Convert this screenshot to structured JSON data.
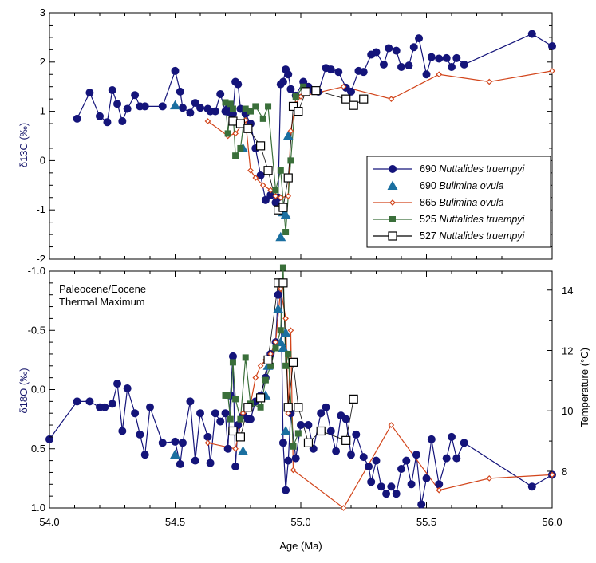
{
  "chart_data": [
    {
      "type": "scatter",
      "panel": "top",
      "ylabel": "δ13C (‰)",
      "xlim": [
        54.0,
        56.0
      ],
      "ylim": [
        -2,
        3
      ],
      "y_ticks": [
        "3",
        "2",
        "1",
        "0",
        "-1",
        "-2"
      ],
      "legend_position": "lower-right",
      "series": [
        {
          "name": "690 Nuttalides truempyi",
          "site": "690",
          "species": "Nuttalides truempyi",
          "color": "#14147a",
          "marker": "circle",
          "line": true,
          "x": [
            54.11,
            54.16,
            54.2,
            54.23,
            54.25,
            54.27,
            54.29,
            54.31,
            54.34,
            54.36,
            54.38,
            54.45,
            54.5,
            54.52,
            54.53,
            54.56,
            54.58,
            54.6,
            54.63,
            54.64,
            54.66,
            54.68,
            54.7,
            54.71,
            54.72,
            54.73,
            54.74,
            54.75,
            54.76,
            54.78,
            54.8,
            54.82,
            54.84,
            54.86,
            54.88,
            54.9,
            54.91,
            54.92,
            54.93,
            54.94,
            54.95,
            54.96,
            54.98,
            55.01,
            55.03,
            55.05,
            55.07,
            55.1,
            55.12,
            55.15,
            55.18,
            55.2,
            55.23,
            55.25,
            55.28,
            55.3,
            55.33,
            55.35,
            55.38,
            55.4,
            55.43,
            55.45,
            55.47,
            55.5,
            55.52,
            55.55,
            55.58,
            55.6,
            55.62,
            55.65,
            55.92,
            56.0
          ],
          "y": [
            0.85,
            1.38,
            0.9,
            0.78,
            1.43,
            1.15,
            0.8,
            1.05,
            1.33,
            1.1,
            1.1,
            1.1,
            1.82,
            1.4,
            1.07,
            0.97,
            1.17,
            1.07,
            1.05,
            1.0,
            1.0,
            1.35,
            1.0,
            1.05,
            0.97,
            0.95,
            1.6,
            1.55,
            1.05,
            0.95,
            0.75,
            0.25,
            -0.3,
            -0.8,
            -0.7,
            -0.85,
            -0.75,
            1.55,
            1.6,
            1.85,
            1.75,
            1.45,
            1.32,
            1.6,
            1.5,
            1.42,
            1.4,
            1.88,
            1.85,
            1.8,
            1.48,
            1.4,
            1.82,
            1.8,
            2.15,
            2.2,
            1.95,
            2.28,
            2.23,
            1.9,
            1.93,
            2.3,
            2.48,
            1.75,
            2.1,
            2.07,
            2.08,
            1.9,
            2.08,
            1.95,
            2.57,
            2.32
          ]
        },
        {
          "name": "690 Bulimina ovula",
          "site": "690",
          "species": "Bulimina ovula",
          "color": "#1a6fa0",
          "marker": "triangle",
          "line": false,
          "x": [
            54.5,
            54.77,
            54.93,
            54.94,
            54.92,
            54.95
          ],
          "y": [
            1.12,
            0.25,
            -1.05,
            -1.1,
            -1.55,
            0.5
          ]
        },
        {
          "name": "865 Bulimina ovula",
          "site": "865",
          "species": "Bulimina ovula",
          "color": "#d2451b",
          "marker": "diamond",
          "line": true,
          "x": [
            54.63,
            54.71,
            54.74,
            54.78,
            54.8,
            54.82,
            54.85,
            54.88,
            54.9,
            54.92,
            54.95,
            54.96,
            54.98,
            55.0,
            55.17,
            55.36,
            55.55,
            55.75,
            56.0
          ],
          "y": [
            0.8,
            0.5,
            0.55,
            0.82,
            -0.2,
            -0.35,
            -0.5,
            -0.6,
            -0.72,
            -0.75,
            -0.72,
            0.6,
            1.15,
            1.3,
            1.5,
            1.25,
            1.75,
            1.6,
            1.82
          ]
        },
        {
          "name": "525 Nuttalides truempyi",
          "site": "525",
          "species": "Nuttalides truempyi",
          "color": "#3a6f3a",
          "marker": "square",
          "line": true,
          "x": [
            54.7,
            54.71,
            54.72,
            54.73,
            54.74,
            54.76,
            54.78,
            54.8,
            54.82,
            54.85,
            54.87,
            54.9,
            54.92,
            54.94,
            54.96,
            54.98,
            55.01
          ],
          "y": [
            1.18,
            0.55,
            1.15,
            1.05,
            0.1,
            0.25,
            1.05,
            1.0,
            1.1,
            0.85,
            1.1,
            -0.6,
            -0.2,
            -1.45,
            0.0,
            1.3,
            1.5
          ]
        },
        {
          "name": "527 Nuttalides truempyi",
          "site": "527",
          "species": "Nuttalides truempyi",
          "color": "#000000",
          "marker": "open-square",
          "line": true,
          "x": [
            54.73,
            54.76,
            54.79,
            54.84,
            54.87,
            54.91,
            54.93,
            54.95,
            54.97,
            54.99,
            55.02,
            55.06,
            55.18,
            55.21,
            55.25
          ],
          "y": [
            0.8,
            0.75,
            0.65,
            0.3,
            -0.2,
            -1.0,
            -0.95,
            -0.35,
            1.1,
            1.0,
            1.4,
            1.42,
            1.25,
            1.12,
            1.25
          ]
        }
      ]
    },
    {
      "type": "scatter",
      "panel": "bottom",
      "title": "Paleocene/Eocene",
      "subtitle": "Thermal Maximum",
      "xlabel": "Age (Ma)",
      "ylabel": "δ18O (‰)",
      "y2label": "Temperature (°C)",
      "xlim": [
        54.0,
        56.0
      ],
      "ylim": [
        -1.0,
        1.0
      ],
      "y_inverted": true,
      "x_ticks": [
        "54.0",
        "54.5",
        "55.0",
        "55.5",
        "56.0"
      ],
      "y_ticks": [
        "-1.0",
        "-0.5",
        "0.0",
        "0.5",
        "1.0"
      ],
      "y2_ticks": [
        "14",
        "12",
        "10",
        "8"
      ],
      "y2_tick_positions_d18O": [
        -0.84,
        -0.33,
        0.18,
        0.69
      ],
      "series": [
        {
          "name": "690 Nuttalides truempyi",
          "color": "#14147a",
          "marker": "circle",
          "line": true,
          "x": [
            54.0,
            54.11,
            54.16,
            54.2,
            54.22,
            54.25,
            54.27,
            54.29,
            54.31,
            54.34,
            54.36,
            54.38,
            54.4,
            54.45,
            54.5,
            54.52,
            54.53,
            54.56,
            54.58,
            54.6,
            54.63,
            54.64,
            54.66,
            54.68,
            54.7,
            54.71,
            54.72,
            54.73,
            54.74,
            54.75,
            54.77,
            54.79,
            54.8,
            54.82,
            54.84,
            54.86,
            54.88,
            54.9,
            54.91,
            54.92,
            54.93,
            54.94,
            54.95,
            54.96,
            54.98,
            55.0,
            55.03,
            55.05,
            55.08,
            55.1,
            55.12,
            55.14,
            55.16,
            55.18,
            55.2,
            55.22,
            55.25,
            55.27,
            55.28,
            55.3,
            55.32,
            55.34,
            55.36,
            55.38,
            55.4,
            55.42,
            55.44,
            55.46,
            55.48,
            55.5,
            55.52,
            55.55,
            55.58,
            55.6,
            55.62,
            55.65,
            55.92,
            56.0
          ],
          "y": [
            0.42,
            0.1,
            0.1,
            0.15,
            0.15,
            0.12,
            -0.05,
            0.35,
            -0.01,
            0.2,
            0.38,
            0.55,
            0.15,
            0.45,
            0.44,
            0.63,
            0.45,
            0.1,
            0.6,
            0.2,
            0.4,
            0.62,
            0.2,
            0.27,
            0.2,
            0.5,
            0.05,
            -0.28,
            0.65,
            0.3,
            0.22,
            0.25,
            0.25,
            0.1,
            0.05,
            -0.1,
            -0.3,
            -0.4,
            -0.8,
            -0.9,
            0.45,
            0.85,
            0.6,
            0.2,
            0.58,
            0.3,
            0.3,
            0.5,
            0.2,
            0.15,
            0.35,
            0.52,
            0.22,
            0.25,
            0.55,
            0.38,
            0.57,
            0.65,
            0.78,
            0.6,
            0.82,
            0.88,
            0.82,
            0.88,
            0.67,
            0.6,
            0.8,
            0.55,
            0.97,
            0.75,
            0.42,
            0.8,
            0.58,
            0.4,
            0.58,
            0.45,
            0.82,
            0.72
          ]
        },
        {
          "name": "690 Bulimina ovula",
          "color": "#1a6fa0",
          "marker": "triangle",
          "line": false,
          "x": [
            54.5,
            54.77,
            54.86,
            54.87,
            54.91,
            54.92,
            54.93,
            54.94,
            54.94
          ],
          "y": [
            0.55,
            0.52,
            0.05,
            -0.2,
            -0.68,
            -0.4,
            -0.35,
            -0.48,
            0.35
          ]
        },
        {
          "name": "865 Bulimina ovula",
          "color": "#d2451b",
          "marker": "diamond",
          "line": true,
          "x": [
            54.63,
            54.74,
            54.77,
            54.8,
            54.82,
            54.84,
            54.86,
            54.88,
            54.9,
            54.92,
            54.94,
            54.95,
            54.96,
            54.97,
            55.17,
            55.36,
            55.55,
            55.75,
            56.0
          ],
          "y": [
            0.45,
            0.5,
            0.2,
            0.12,
            -0.1,
            -0.2,
            -0.25,
            -0.3,
            -0.4,
            -0.85,
            -0.6,
            0.2,
            -0.5,
            0.68,
            1.0,
            0.3,
            0.85,
            0.75,
            0.72
          ]
        },
        {
          "name": "525 Nuttalides truempyi",
          "color": "#3a6f3a",
          "marker": "square",
          "line": true,
          "x": [
            54.7,
            54.71,
            54.72,
            54.73,
            54.74,
            54.76,
            54.78,
            54.8,
            54.84,
            54.86,
            54.88,
            54.9,
            54.92,
            54.93,
            54.94,
            54.95,
            54.97,
            54.99
          ],
          "y": [
            0.05,
            0.05,
            0.25,
            -0.23,
            0.08,
            0.25,
            -0.27,
            0.12,
            0.15,
            -0.08,
            -0.2,
            -0.35,
            -0.5,
            -1.03,
            -0.2,
            -0.3,
            0.48,
            0.37
          ]
        },
        {
          "name": "527 Nuttalides truempyi",
          "color": "#000000",
          "marker": "open-square",
          "line": true,
          "x": [
            54.73,
            54.76,
            54.79,
            54.84,
            54.87,
            54.91,
            54.93,
            54.95,
            54.97,
            54.99,
            55.03,
            55.08,
            55.18,
            55.21
          ],
          "y": [
            0.35,
            0.4,
            0.15,
            0.07,
            -0.25,
            -0.9,
            -0.9,
            0.15,
            -0.23,
            0.15,
            0.45,
            0.35,
            0.43,
            0.08
          ]
        }
      ]
    }
  ]
}
